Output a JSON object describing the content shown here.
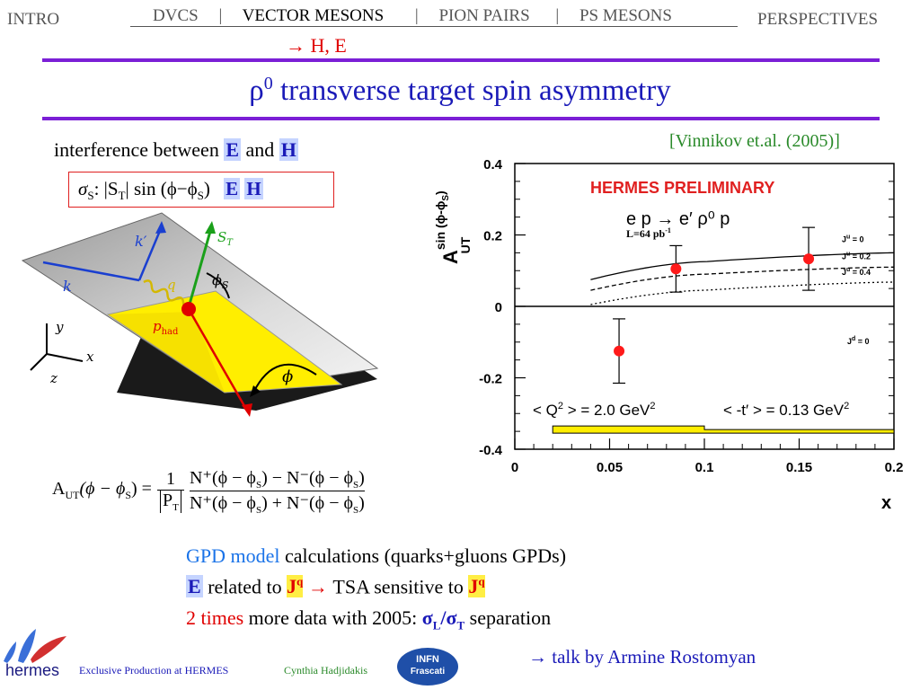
{
  "nav": {
    "intro": "INTRO",
    "tabs": [
      "DVCS",
      "VECTOR MESONS",
      "PION PAIRS",
      "PS MESONS"
    ],
    "separator": "|",
    "perspectives": "PERSPECTIVES",
    "sub": "H, E",
    "sub_arrow": "→"
  },
  "title": {
    "rho": "ρ",
    "sup": "0",
    "text": " transverse target spin asymmetry"
  },
  "reference": "[Vinnikov et.al. (2005)]",
  "interference": {
    "prefix": "interference between ",
    "e": "E",
    "and": " and ",
    "h": "H"
  },
  "sigma_box": {
    "sigma": "σ",
    "sub_s": "S",
    "colon": ": |S",
    "sub_t": "T",
    "rest": "| sin (ϕ−ϕ",
    "sub_s2": "S",
    "close": ")",
    "e": "E",
    "h": "H"
  },
  "diagram": {
    "k_prime": "k′",
    "s_t": "S",
    "s_t_sub": "T",
    "k": "k",
    "q": "q",
    "phi_s": "ϕ",
    "phi_s_sub": "S",
    "p_had": "p",
    "p_had_sub": "had",
    "phi": "ϕ",
    "y": "y",
    "x": "x",
    "z": "z"
  },
  "formula": {
    "lhs": "A",
    "lhs_sub": "UT",
    "lhs_arg": "(ϕ − ϕ",
    "lhs_arg_sub": "S",
    "lhs_close": ") =",
    "one": "1",
    "pt": "P",
    "pt_sub": "T",
    "num": "N⁺(ϕ − ϕ",
    "num_sub1": "S",
    "num_mid": ") − N⁻(ϕ − ϕ",
    "num_sub2": "S",
    "num_close": ")",
    "den": "N⁺(ϕ − ϕ",
    "den_sub1": "S",
    "den_mid": ") + N⁻(ϕ − ϕ",
    "den_sub2": "S",
    "den_close": ")"
  },
  "bullets": {
    "line1_a": "GPD model",
    "line1_b": " calculations (quarks+gluons GPDs)",
    "line2_e": "E",
    "line2_b": " related to ",
    "line2_j": "J",
    "line2_jsup": "q",
    "line2_arrow": " → ",
    "line2_c": "TSA sensitive to ",
    "line2_j2": "J",
    "line2_j2sup": "q",
    "line3_a": "2 times",
    "line3_b": " more data with 2005: ",
    "line3_sl": "σ",
    "line3_sl_sub": "L",
    "line3_slash": "/",
    "line3_st": "σ",
    "line3_st_sub": "T",
    "line3_c": " separation",
    "talk": "→ talk by Armine Rostomyan"
  },
  "footer": {
    "logo": "hermes",
    "exclusive": "Exclusive Production at HERMES",
    "author": "Cynthia Hadjidakis",
    "infn1": "INFN",
    "infn2": "Frascati"
  },
  "colors": {
    "accent": "#7b1fd6",
    "title_blue": "#1a1ab8",
    "red": "#e00000",
    "gpd_blue": "#1a73e8",
    "band_yellow": "#ffee00"
  },
  "chart_data": {
    "type": "scatter",
    "title": "HERMES PRELIMINARY",
    "reaction": "e p → e′ ρ⁰ p",
    "lumi": "L=64 pb",
    "lumi_sup": "-1",
    "ylabel": "A",
    "ylabel_sup": "sin (ϕ-ϕ",
    "ylabel_sup_sub": "S",
    "ylabel_sup_close": ")",
    "ylabel_sub": "UT",
    "xlabel": "x",
    "xlim": [
      0,
      0.2
    ],
    "ylim": [
      -0.4,
      0.4
    ],
    "xticks": [
      0,
      0.05,
      0.1,
      0.15,
      0.2
    ],
    "xtick_labels": [
      "0",
      "0.05",
      "0.1",
      "0.15",
      "0.2"
    ],
    "yticks": [
      -0.4,
      -0.2,
      0,
      0.2,
      0.4
    ],
    "ytick_labels": [
      "-0.4",
      "-0.2",
      "0",
      "0.2",
      "0.4"
    ],
    "points": [
      {
        "x": 0.055,
        "y": -0.125,
        "err": 0.09
      },
      {
        "x": 0.085,
        "y": 0.105,
        "err": 0.065
      },
      {
        "x": 0.155,
        "y": 0.133,
        "err": 0.088
      }
    ],
    "curves": [
      {
        "name": "J",
        "name_sup": "u",
        "eq": " = 0",
        "style": "solid",
        "x": [
          0.04,
          0.1,
          0.2
        ],
        "y": [
          0.075,
          0.125,
          0.15
        ]
      },
      {
        "name": "J",
        "name_sup": "u",
        "eq": " = 0.2",
        "style": "dashed",
        "x": [
          0.04,
          0.1,
          0.2
        ],
        "y": [
          0.045,
          0.09,
          0.11
        ]
      },
      {
        "name": "J",
        "name_sup": "u",
        "eq": " = 0.4",
        "style": "dotted",
        "x": [
          0.04,
          0.1,
          0.2
        ],
        "y": [
          0.005,
          0.045,
          0.068
        ]
      }
    ],
    "jd_label": "J",
    "jd_sup": "d",
    "jd_eq": " = 0",
    "q2_label": "< Q",
    "q2_sup": "2",
    "q2_eq": " > = 2.0 GeV",
    "q2_unit_sup": "2",
    "t_label": "< -t′ > = 0.13 GeV",
    "t_sup": "2",
    "band": {
      "x": [
        0.02,
        0.1,
        0.1,
        0.2
      ],
      "y": [
        -0.335,
        -0.335,
        -0.345,
        -0.345
      ]
    }
  }
}
